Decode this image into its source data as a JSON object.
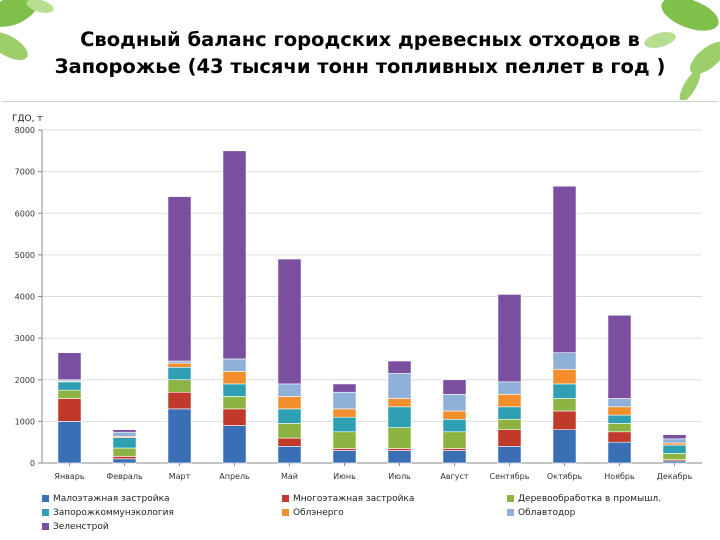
{
  "title": {
    "line1": "Сводный баланс городских древесных отходов в",
    "line2": "Запорожье (43 тысячи тонн топливных пеллет  в год )"
  },
  "chart_data": {
    "type": "bar",
    "stacked": true,
    "ylabel": "ГДО, т",
    "xlabel": "",
    "ylim": [
      0,
      8000
    ],
    "yticks": [
      0,
      1000,
      2000,
      3000,
      4000,
      5000,
      6000,
      7000,
      8000
    ],
    "grid": true,
    "legend_position": "bottom",
    "categories": [
      "Январь",
      "Февраль",
      "Март",
      "Апрель",
      "Май",
      "Июнь",
      "Июль",
      "Август",
      "Сентябрь",
      "Октябрь",
      "Ноябрь",
      "Декабрь"
    ],
    "series": [
      {
        "name": "Малоэтажная застройка",
        "color": "#3a6fb5",
        "values": [
          1000,
          100,
          1300,
          900,
          400,
          300,
          300,
          300,
          400,
          800,
          500,
          50
        ]
      },
      {
        "name": "Многоэтажная застройка",
        "color": "#c0392b",
        "values": [
          550,
          60,
          400,
          400,
          200,
          50,
          50,
          50,
          400,
          450,
          250,
          30
        ]
      },
      {
        "name": "Деревообработка в промышл.",
        "color": "#8db342",
        "values": [
          200,
          200,
          300,
          300,
          350,
          400,
          500,
          400,
          250,
          300,
          200,
          150
        ]
      },
      {
        "name": "Запорожкоммунэкология",
        "color": "#2fa0b3",
        "values": [
          200,
          250,
          300,
          300,
          350,
          350,
          500,
          300,
          300,
          350,
          200,
          200
        ]
      },
      {
        "name": "Облэнерго",
        "color": "#f28e2b",
        "values": [
          20,
          30,
          100,
          300,
          300,
          200,
          200,
          200,
          300,
          350,
          200,
          50
        ]
      },
      {
        "name": "Облавтодор",
        "color": "#8fb0d9",
        "values": [
          30,
          100,
          50,
          300,
          300,
          400,
          600,
          400,
          300,
          400,
          200,
          100
        ]
      },
      {
        "name": "Зеленстрой",
        "color": "#7b4fa0",
        "values": [
          650,
          60,
          3950,
          5000,
          3000,
          200,
          300,
          350,
          2100,
          4000,
          2000,
          100
        ]
      }
    ]
  }
}
